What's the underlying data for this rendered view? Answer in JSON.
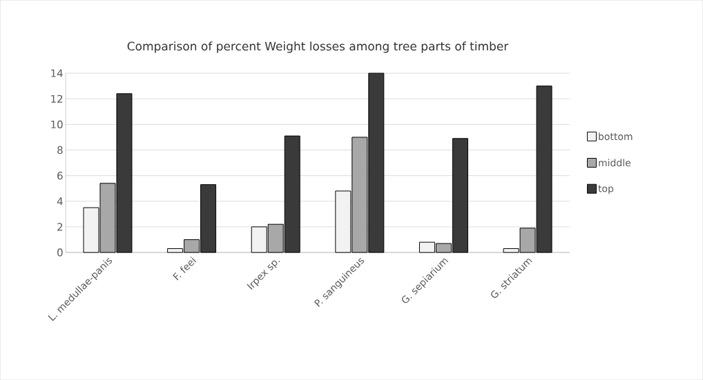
{
  "chart_data": {
    "type": "bar",
    "title": "Comparison of percent Weight losses among tree parts of timber",
    "categories": [
      "L. medullae-panis",
      "F. feei",
      "Irpex sp.",
      "P. sanguineus",
      "G. sepiarium",
      "G. striatum"
    ],
    "series": [
      {
        "name": "bottom",
        "color": "#f2f2f2",
        "values": [
          3.5,
          0.3,
          2.0,
          4.8,
          0.8,
          0.3
        ]
      },
      {
        "name": "middle",
        "color": "#a8a8a8",
        "values": [
          5.4,
          1.0,
          2.2,
          9.0,
          0.7,
          1.9
        ]
      },
      {
        "name": "top",
        "color": "#3a3a3a",
        "values": [
          12.4,
          5.3,
          9.1,
          14.0,
          8.9,
          13.0
        ]
      }
    ],
    "ylim": [
      0,
      14
    ],
    "yticks": [
      0,
      2,
      4,
      6,
      8,
      10,
      12,
      14
    ],
    "grid": "y",
    "legend": "right"
  }
}
